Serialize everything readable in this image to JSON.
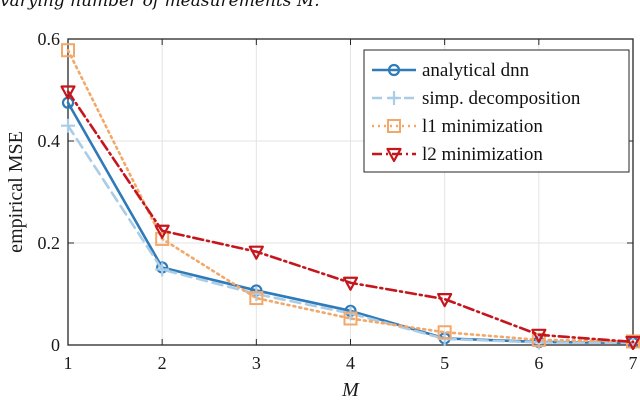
{
  "caption": "varying number of measurements M.",
  "chart_data": {
    "type": "line",
    "title": "",
    "xlabel": "M",
    "ylabel": "empirical MSE",
    "x": [
      1,
      2,
      3,
      4,
      5,
      6,
      7
    ],
    "xlim": [
      1,
      7
    ],
    "ylim": [
      0,
      0.6
    ],
    "xticks": [
      "1",
      "2",
      "3",
      "4",
      "5",
      "6",
      "7"
    ],
    "yticks": [
      "0",
      "0.2",
      "0.4",
      "0.6"
    ],
    "grid": true,
    "legend_position": "top-right",
    "series": [
      {
        "name": "analytical dnn",
        "values": [
          0.475,
          0.152,
          0.107,
          0.067,
          0.013,
          0.006,
          0.004
        ],
        "color": "#2f7ab8",
        "dash": "solid",
        "marker": "circle"
      },
      {
        "name": "simp. decomposition",
        "values": [
          0.43,
          0.148,
          0.1,
          0.062,
          0.012,
          0.005,
          0.004
        ],
        "color": "#a9cde6",
        "dash": "dashed",
        "marker": "plus"
      },
      {
        "name": "l1 minimization",
        "values": [
          0.578,
          0.208,
          0.092,
          0.052,
          0.025,
          0.01,
          0.007
        ],
        "color": "#f3a86a",
        "dash": "dotted",
        "marker": "square"
      },
      {
        "name": "l2 minimization",
        "values": [
          0.497,
          0.224,
          0.183,
          0.122,
          0.09,
          0.02,
          0.006
        ],
        "color": "#c4161c",
        "dash": "dashdot",
        "marker": "triangle-down"
      }
    ]
  }
}
